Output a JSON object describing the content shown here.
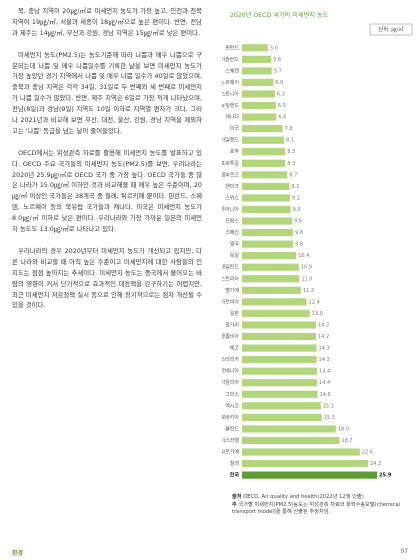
{
  "document": {
    "paragraphs": [
      "북, 충남 지역이 20㎍/㎥로 미세먼지 농도가 가장 높고, 인천과 전북 지역이 19㎍/㎥, 서울과 세종이 18㎍/㎥으로 높은 편이다. 반면, 전남과 제주는 14㎍/㎥, 부산과 강원, 경남 지역은 15㎍/㎥로 낮은 편이다.",
      "미세먼지 농도(PM2.5)는 농도기준에 따라 나쁨과 매우 나쁨으로 구분되는데 나쁨 및 매우 나쁨일수를 기록한 날을 보면 미세먼지 농도가 가장 높았던 경기 지역에서 나쁨 및 매우 나쁨 일수가 40일로 많았으며, 충북과 충남 지역은 각각 34일, 31일로 두 번째와 세 번째로 미세먼지가 나쁨 일수가 많았다. 반면, 제주 지역은 6일로 가장 적게 나타났으며, 전남(8일)과 경남(9일) 지역도 10일 이하로 지역별 편차가 크다. 그러나 2021년과 비교해 보면 부산, 대전, 울산, 강원, 경남 지역을 제외하고는 '나쁨' 등급을 넘는 날이 줄어들었다.",
      "OECD에서는 위성관측 자료를 활용해 미세먼지 농도를 발표하고 있다. OECD 주요 국가들의 미세먼지 농도(PM2.5)를 보면, 우리나라는 2020년 25.9㎍/㎥로 OECD 국가 중 가장 높다. OECD 국가들 중 많은 나라가 15.0㎍/㎥ 이하인 것과 비교해볼 때 매우 높은 수준이며, 20㎍/㎥ 이상인 국가들은 38개국 중 칠레, 튀르키예 뿐이다. 핀란드, 스웨덴, 노르웨이 등의 북유럽 국가들과 캐나다, 미국은 미세먼지 농도가 8.0㎍/㎥ 이하로 낮은 편이다. 우리나라와 가장 가까운 일본의 미세먼지 농도도 13.0㎍/㎥로 나타나고 있다.",
      "우리나라의 경우 2020년부터 미세먼지 농도가 개선되고 있지만, 다른 나라와 비교할 때 아직 높은 수준이고 미세먼지에 대한 사람들의 인지도는 점점 높아지는 추세이다. 미세먼지 농도는 중국에서 불어오는 바람의 영향이 커서 단기적으로 효과적인 대응책을 강구하기는 어렵지만, 최근 미세먼지 저감정책 실시 등으로 인해 장기적으로는 점차 개선될 수 있을 것이다."
    ],
    "source_label": "출처",
    "source": "OECD, Air quality and health(2022년 12월 인출)",
    "note_label": "주",
    "note": "국가별 미세먼지(PM2.5)농도는 위성관측 자료와 화학수송모델(chemical transport model)을 통해 산출된 추정치임.",
    "footer": {
      "section": "환경",
      "page": "97"
    }
  },
  "chart_data": {
    "type": "bar",
    "orientation": "horizontal",
    "title": "2020년 OECD 국가의 미세먼지 농도",
    "unit": "단위: ㎍/㎥",
    "categories": [
      "핀란드",
      "아이슬란드",
      "스웨덴",
      "노르웨이",
      "에스토니아",
      "뉴질랜드",
      "캐나다",
      "미국",
      "아일랜드",
      "호주",
      "포르투갈",
      "룩셈부르크",
      "덴마크",
      "스위스",
      "리투아니아",
      "프랑스",
      "스페인",
      "영국",
      "독일",
      "네덜란드",
      "오스트리아",
      "벨기에",
      "라트비아",
      "일본",
      "헝가리",
      "콜롬비아",
      "체코",
      "코스타리카",
      "슬로베니아",
      "이탈리아",
      "그리스",
      "멕시코",
      "슬로바키아",
      "폴란드",
      "이스라엘",
      "튀르키예",
      "칠레",
      "한국"
    ],
    "values": [
      5.0,
      5.6,
      5.7,
      6.0,
      6.3,
      6.5,
      6.6,
      7.8,
      8.1,
      8.3,
      8.3,
      8.7,
      9.1,
      9.2,
      9.3,
      9.6,
      9.8,
      9.8,
      10.4,
      10.9,
      11.0,
      11.3,
      12.4,
      13.0,
      14.2,
      14.2,
      14.3,
      14.3,
      14.4,
      14.4,
      14.5,
      15.1,
      15.3,
      18.0,
      18.7,
      22.6,
      24.2,
      25.9
    ],
    "value_labels": [
      "5.0",
      "5.6",
      "5.7",
      "6.0",
      "6.3",
      "6.5",
      "6.6",
      "7.8",
      "8.1",
      "8.3",
      "8.3",
      "8.7",
      "9.1",
      "9.2",
      "9.3",
      "9.6",
      "9.8",
      "9.8",
      "10.4",
      "10.9",
      "11.0",
      "11.3",
      "12.4",
      "13.0",
      "14.2",
      "14.2",
      "14.3",
      "14.3",
      "14.4",
      "14.4",
      "14.5",
      "15.1",
      "15.3",
      "18.0",
      "18.7",
      "22.6",
      "24.2",
      "25.9"
    ],
    "colors": [
      "#b3d57c",
      "#b3d57c",
      "#b3d57c",
      "#b3d57c",
      "#b3d57c",
      "#b3d57c",
      "#b3d57c",
      "#b3d57c",
      "#b3d57c",
      "#b3d57c",
      "#b3d57c",
      "#b3d57c",
      "#b3d57c",
      "#b3d57c",
      "#b3d57c",
      "#b3d57c",
      "#b3d57c",
      "#b3d57c",
      "#b3d57c",
      "#b3d57c",
      "#b3d57c",
      "#b3d57c",
      "#b3d57c",
      "#b3d57c",
      "#b3d57c",
      "#b3d57c",
      "#b3d57c",
      "#b3d57c",
      "#b3d57c",
      "#b3d57c",
      "#b3d57c",
      "#b3d57c",
      "#b3d57c",
      "#b3d57c",
      "#b3d57c",
      "#b3d57c",
      "#b3d57c",
      "#5e9c35"
    ]
  }
}
